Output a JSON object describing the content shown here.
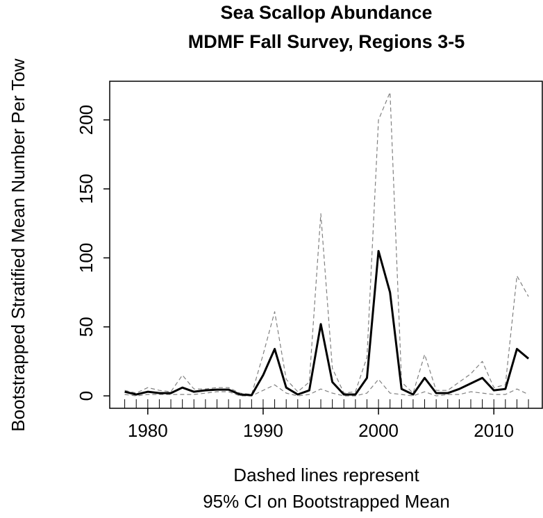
{
  "chart_data": {
    "type": "line",
    "title": [
      "Sea Scallop Abundance",
      "MDMF Fall Survey, Regions 3-5"
    ],
    "y_label": "Bootstrapped Stratified Mean Number Per Tow",
    "x_label": [
      "Dashed lines represent",
      "95% CI on Bootstrapped Mean"
    ],
    "x": [
      1978,
      1979,
      1980,
      1981,
      1982,
      1983,
      1984,
      1985,
      1986,
      1987,
      1988,
      1989,
      1990,
      1991,
      1992,
      1993,
      1994,
      1995,
      1996,
      1997,
      1998,
      1999,
      2000,
      2001,
      2002,
      2003,
      2004,
      2005,
      2006,
      2007,
      2008,
      2009,
      2010,
      2011,
      2012,
      2013
    ],
    "series": [
      {
        "color": "#000000",
        "dashed": false,
        "values": [
          3,
          1,
          3,
          2,
          2,
          6,
          3,
          4,
          4.5,
          4.5,
          1,
          0.5,
          15,
          34,
          6,
          1,
          4,
          52,
          10,
          1,
          1,
          13,
          105,
          75,
          5,
          1,
          13,
          2,
          2,
          5,
          9,
          13,
          4,
          5,
          34,
          27
        ]
      },
      {
        "color": "#808080",
        "dashed": true,
        "values": [
          4,
          2,
          6,
          4,
          3,
          15,
          5,
          5,
          6,
          6,
          2,
          1,
          30,
          61,
          12,
          3,
          10,
          132,
          20,
          2,
          3,
          28,
          200,
          220,
          10,
          2,
          30,
          4,
          4,
          10,
          16,
          25,
          6,
          8,
          87,
          72
        ]
      },
      {
        "color": "#808080",
        "dashed": true,
        "values": [
          1,
          0,
          1,
          1,
          1,
          1,
          1,
          2,
          3,
          3,
          0,
          0,
          4,
          8,
          2,
          0,
          1,
          5,
          2,
          0,
          0,
          2,
          12,
          2,
          1,
          0,
          3,
          0,
          1,
          1,
          3,
          2,
          1,
          1,
          5,
          1
        ]
      }
    ],
    "xlim": [
      1976.7,
      2014.2
    ],
    "ylim": [
      -9,
      228
    ],
    "xticks": [
      1980,
      1990,
      2000,
      2010
    ],
    "xminor_ticks": [
      1978,
      1979,
      1980,
      1981,
      1982,
      1983,
      1984,
      1985,
      1986,
      1987,
      1988,
      1989,
      1990,
      1991,
      1992,
      1993,
      1994,
      1995,
      1996,
      1997,
      1998,
      1999,
      2000,
      2001,
      2002,
      2003,
      2004,
      2005,
      2006,
      2007,
      2008,
      2009,
      2010,
      2011,
      2012,
      2013
    ],
    "yticks": [
      0,
      50,
      100,
      150,
      200
    ]
  }
}
